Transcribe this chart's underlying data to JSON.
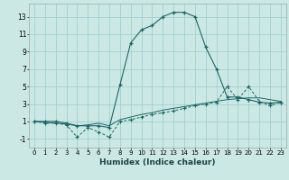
{
  "xlabel": "Humidex (Indice chaleur)",
  "ylabel": "",
  "background_color": "#cce8e4",
  "grid_color": "#99cccc",
  "line_color": "#1a6666",
  "xlim": [
    -0.5,
    23.5
  ],
  "ylim": [
    -2,
    14.5
  ],
  "yticks": [
    -1,
    1,
    3,
    5,
    7,
    9,
    11,
    13
  ],
  "xticks": [
    0,
    1,
    2,
    3,
    4,
    5,
    6,
    7,
    8,
    9,
    10,
    11,
    12,
    13,
    14,
    15,
    16,
    17,
    18,
    19,
    20,
    21,
    22,
    23
  ],
  "series1": [
    1,
    1,
    1,
    0.8,
    0.5,
    0.5,
    0.5,
    0.3,
    5.2,
    10.0,
    11.5,
    12.0,
    13.0,
    13.5,
    13.5,
    13.0,
    9.5,
    7.0,
    3.8,
    3.8,
    3.5,
    3.2,
    3.1,
    3.2
  ],
  "series2": [
    1.0,
    0.8,
    0.8,
    0.6,
    -0.8,
    0.3,
    -0.2,
    -0.8,
    1.0,
    1.2,
    1.5,
    1.8,
    2.0,
    2.2,
    2.5,
    2.8,
    3.0,
    3.2,
    5.0,
    3.5,
    5.0,
    3.3,
    2.8,
    3.2
  ],
  "series3": [
    1.0,
    0.9,
    0.8,
    0.7,
    0.5,
    0.6,
    0.8,
    0.5,
    1.2,
    1.5,
    1.8,
    2.0,
    2.3,
    2.5,
    2.7,
    2.9,
    3.1,
    3.3,
    3.5,
    3.6,
    3.7,
    3.7,
    3.5,
    3.3
  ]
}
